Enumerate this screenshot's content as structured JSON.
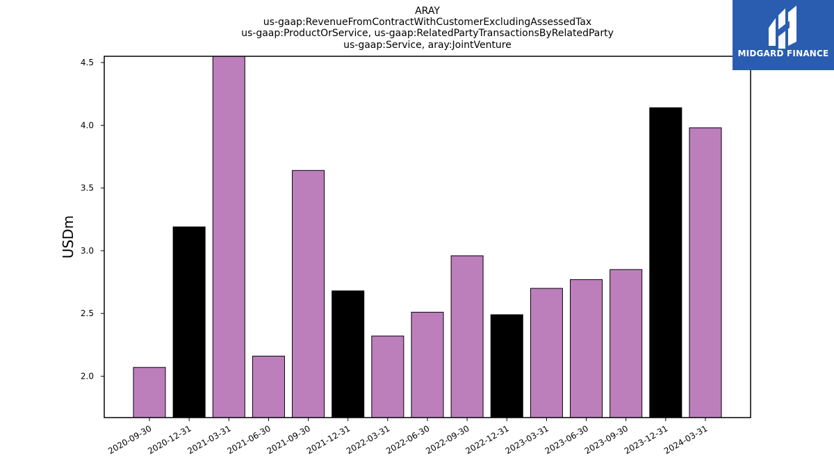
{
  "colors": {
    "highlight": "#000000",
    "normal": "#bc7fbc",
    "logo_bg": "#2a5db0"
  },
  "logo": {
    "text": "MIDGARD FINANCE",
    "icon": "midgard-logo-icon"
  },
  "chart_data": {
    "type": "bar",
    "title_lines": [
      "ARAY",
      "us-gaap:RevenueFromContractWithCustomerExcludingAssessedTax",
      "us-gaap:ProductOrService, us-gaap:RelatedPartyTransactionsByRelatedParty",
      "us-gaap:Service, aray:JointVenture"
    ],
    "xlabel": "",
    "ylabel": "USDm",
    "ylim": [
      1.67,
      4.55
    ],
    "yticks": [
      2.0,
      2.5,
      3.0,
      3.5,
      4.0,
      4.5
    ],
    "ytick_labels": [
      "2.0",
      "2.5",
      "3.0",
      "3.5",
      "4.0",
      "4.5"
    ],
    "categories": [
      "2020-09-30",
      "2020-12-31",
      "2021-03-31",
      "2021-06-30",
      "2021-09-30",
      "2021-12-31",
      "2022-03-31",
      "2022-06-30",
      "2022-09-30",
      "2022-12-31",
      "2023-03-31",
      "2023-06-30",
      "2023-09-30",
      "2023-12-31",
      "2024-03-31"
    ],
    "values": [
      2.07,
      3.19,
      4.55,
      2.16,
      3.64,
      2.68,
      2.32,
      2.51,
      2.96,
      2.49,
      2.7,
      2.77,
      2.85,
      4.14,
      3.98
    ],
    "highlighted": [
      false,
      true,
      false,
      false,
      false,
      true,
      false,
      false,
      false,
      true,
      false,
      false,
      false,
      true,
      false
    ],
    "grid": false,
    "legend": "none"
  }
}
